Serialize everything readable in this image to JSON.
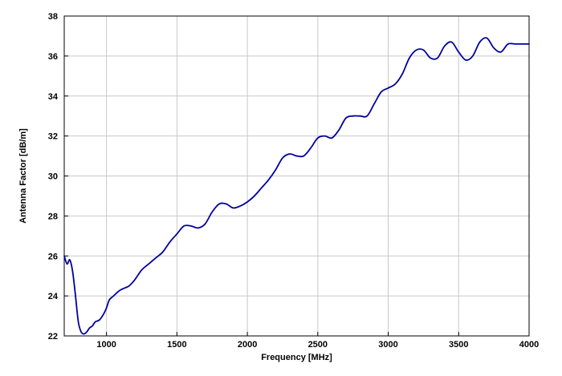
{
  "chart_data": {
    "type": "line",
    "title": "",
    "xlabel": "Frequency [MHz]",
    "ylabel": "Antenna Factor [dB/m]",
    "xlim": [
      700,
      4000
    ],
    "ylim": [
      22,
      38
    ],
    "xticks": [
      1000,
      1500,
      2000,
      2500,
      3000,
      3500,
      4000
    ],
    "yticks": [
      22,
      24,
      26,
      28,
      30,
      32,
      34,
      36,
      38
    ],
    "grid": true,
    "line_color": "#0000a0",
    "series": [
      {
        "x": [
          700,
          720,
          740,
          760,
          780,
          800,
          820,
          840,
          860,
          880,
          900,
          920,
          950,
          980,
          1000,
          1020,
          1050,
          1080,
          1100,
          1130,
          1160,
          1200,
          1250,
          1300,
          1350,
          1400,
          1450,
          1500,
          1550,
          1600,
          1650,
          1700,
          1750,
          1800,
          1850,
          1900,
          1950,
          2000,
          2050,
          2100,
          2150,
          2200,
          2250,
          2300,
          2350,
          2400,
          2450,
          2500,
          2550,
          2600,
          2650,
          2700,
          2750,
          2800,
          2850,
          2900,
          2950,
          3000,
          3050,
          3100,
          3150,
          3200,
          3250,
          3300,
          3350,
          3400,
          3450,
          3500,
          3550,
          3600,
          3650,
          3700,
          3750,
          3800,
          3850,
          3900,
          3950,
          4000
        ],
        "y": [
          26.0,
          25.6,
          25.8,
          25.2,
          24.0,
          22.7,
          22.2,
          22.1,
          22.2,
          22.4,
          22.5,
          22.7,
          22.8,
          23.1,
          23.4,
          23.8,
          24.0,
          24.2,
          24.3,
          24.4,
          24.5,
          24.8,
          25.3,
          25.6,
          25.9,
          26.2,
          26.7,
          27.1,
          27.5,
          27.5,
          27.4,
          27.6,
          28.2,
          28.6,
          28.6,
          28.4,
          28.5,
          28.7,
          29.0,
          29.4,
          29.8,
          30.3,
          30.9,
          31.1,
          31.0,
          31.0,
          31.4,
          31.9,
          32.0,
          31.9,
          32.3,
          32.9,
          33.0,
          33.0,
          33.0,
          33.6,
          34.2,
          34.4,
          34.6,
          35.1,
          35.9,
          36.3,
          36.3,
          35.9,
          35.9,
          36.5,
          36.7,
          36.2,
          35.8,
          36.0,
          36.7,
          36.9,
          36.4,
          36.2,
          36.6,
          36.6,
          36.6,
          36.6
        ]
      }
    ]
  }
}
